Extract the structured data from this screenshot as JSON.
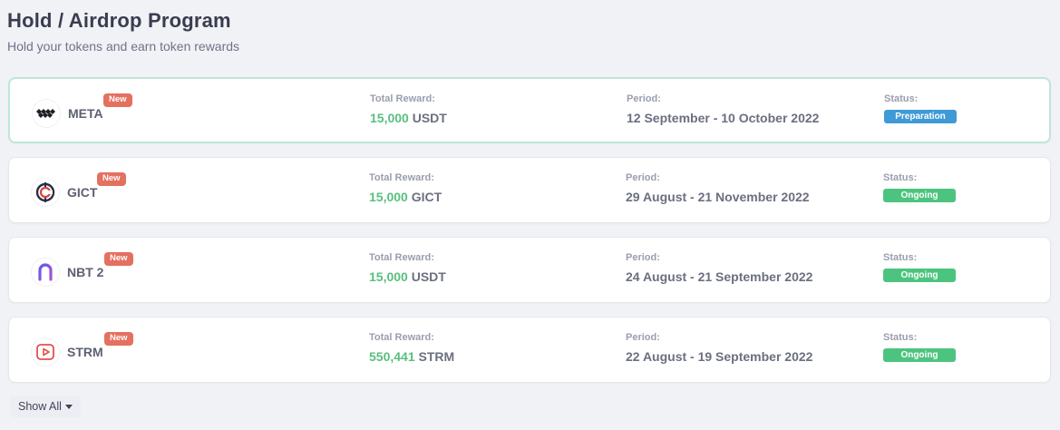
{
  "header": {
    "title": "Hold / Airdrop Program",
    "subtitle": "Hold your tokens and earn token rewards"
  },
  "colors": {
    "accent_green": "#5abf7f",
    "new_badge": "#e4705f",
    "preparation": "#3f9ad6",
    "ongoing": "#4cc47f",
    "active_border": "#bfe6d6"
  },
  "programs": [
    {
      "name": "META",
      "icon": "meta-logo-icon",
      "badge": "New",
      "reward_label": "Total Reward:",
      "reward_amount": "15,000",
      "reward_unit": "USDT",
      "period_label": "Period:",
      "period": "12 September - 10 October 2022",
      "status_label": "Status:",
      "status": "Preparation",
      "status_color": "#3f9ad6",
      "active": true
    },
    {
      "name": "GICT",
      "icon": "gict-logo-icon",
      "badge": "New",
      "reward_label": "Total Reward:",
      "reward_amount": "15,000",
      "reward_unit": "GICT",
      "period_label": "Period:",
      "period": "29 August - 21 November 2022",
      "status_label": "Status:",
      "status": "Ongoing",
      "status_color": "#4cc47f",
      "active": false
    },
    {
      "name": "NBT 2",
      "icon": "nbt-logo-icon",
      "badge": "New",
      "reward_label": "Total Reward:",
      "reward_amount": "15,000",
      "reward_unit": "USDT",
      "period_label": "Period:",
      "period": "24 August - 21 September 2022",
      "status_label": "Status:",
      "status": "Ongoing",
      "status_color": "#4cc47f",
      "active": false
    },
    {
      "name": "STRM",
      "icon": "strm-logo-icon",
      "badge": "New",
      "reward_label": "Total Reward:",
      "reward_amount": "550,441",
      "reward_unit": "STRM",
      "period_label": "Period:",
      "period": "22 August - 19 September 2022",
      "status_label": "Status:",
      "status": "Ongoing",
      "status_color": "#4cc47f",
      "active": false
    }
  ],
  "footer": {
    "show_all_label": "Show All",
    "show_all_icon": "caret-down-icon"
  }
}
